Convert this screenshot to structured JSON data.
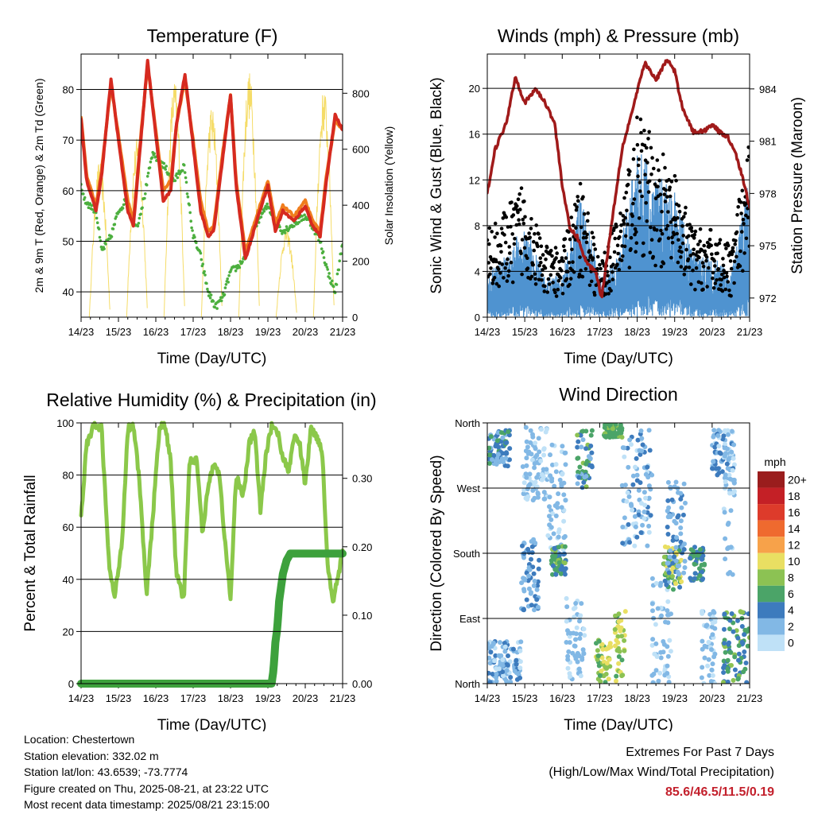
{
  "footer": {
    "location": "Location: Chestertown",
    "elevation": "Station elevation: 332.02 m",
    "latlon": "Station lat/lon: 43.6539; -73.7774",
    "created": "Figure created on Thu, 2025-08-21, at 23:22 UTC",
    "recent": "Most recent data timestamp: 2025/08/21 23:15:00",
    "extremes_title": "Extremes For Past 7 Days",
    "extremes_sub": "(High/Low/Max Wind/Total Precipitation)",
    "extremes_values": "85.6/46.5/11.5/0.19"
  },
  "chart_data": [
    {
      "type": "line",
      "title": "Temperature (F)",
      "xlabel": "Time (Day/UTC)",
      "ylabel": "2m & 9m T (Red, Orange) & 2m Td (Green)",
      "y2label": "Solar Insolation (Yellow)",
      "xticks": [
        "14/23",
        "15/23",
        "16/23",
        "17/23",
        "18/23",
        "19/23",
        "20/23",
        "21/23"
      ],
      "xlim": [
        0,
        7
      ],
      "ylim": [
        35,
        87
      ],
      "yticks": [
        40,
        50,
        60,
        70,
        80
      ],
      "y2lim": [
        0,
        940
      ],
      "y2ticks": [
        0,
        200,
        400,
        600,
        800
      ],
      "grid": true,
      "colors": {
        "t2m": "#d62a20",
        "t9m": "#f07d1e",
        "td": "#4caf3e",
        "solar": "#f5dc68"
      },
      "series": [
        {
          "key": "t9m",
          "axis": "left",
          "x": [
            0,
            0.15,
            0.4,
            0.55,
            0.8,
            1.0,
            1.25,
            1.4,
            1.6,
            1.78,
            2.0,
            2.2,
            2.4,
            2.55,
            2.78,
            3.0,
            3.2,
            3.4,
            3.55,
            3.8,
            4.0,
            4.15,
            4.4,
            4.7,
            5.0,
            5.2,
            5.4,
            5.7,
            6.0,
            6.2,
            6.4,
            6.55,
            6.8,
            7.0
          ],
          "y": [
            74.5,
            63,
            57,
            64,
            81,
            71,
            58,
            54,
            71,
            85,
            72,
            60,
            62,
            73,
            82,
            70,
            58,
            52,
            53,
            68,
            79,
            62,
            48,
            55,
            62,
            53.5,
            57,
            55,
            58,
            54,
            52,
            62,
            74,
            72
          ]
        },
        {
          "key": "t2m",
          "axis": "left",
          "x": [
            0,
            0.15,
            0.4,
            0.55,
            0.8,
            1.0,
            1.25,
            1.4,
            1.6,
            1.78,
            2.0,
            2.2,
            2.4,
            2.55,
            2.78,
            3.0,
            3.2,
            3.4,
            3.55,
            3.8,
            4.0,
            4.15,
            4.4,
            4.7,
            5.0,
            5.2,
            5.4,
            5.7,
            6.0,
            6.2,
            6.4,
            6.55,
            6.8,
            7.0
          ],
          "y": [
            74,
            62,
            56,
            63,
            82,
            70,
            56,
            53,
            70,
            85.6,
            71,
            58,
            60,
            73,
            83,
            69,
            56,
            51,
            52,
            67,
            79,
            61,
            46.5,
            54,
            61,
            52,
            56,
            54,
            57,
            53,
            51,
            61,
            75,
            72
          ]
        },
        {
          "key": "td",
          "axis": "left",
          "x": [
            0,
            0.1,
            0.4,
            0.55,
            0.8,
            1.0,
            1.2,
            1.5,
            1.7,
            1.9,
            2.1,
            2.3,
            2.5,
            2.75,
            3.0,
            3.2,
            3.4,
            3.6,
            3.8,
            4.0,
            4.2,
            4.4,
            4.6,
            4.8,
            5.0,
            5.2,
            5.4,
            5.6,
            5.8,
            6.0,
            6.2,
            6.4,
            6.6,
            6.8,
            7.0
          ],
          "y": [
            61,
            58,
            56,
            48,
            51,
            56,
            58,
            53,
            59,
            67,
            66,
            64,
            62,
            65,
            51,
            47,
            40,
            37,
            39,
            44,
            45,
            47,
            52,
            55,
            57,
            54,
            52,
            53,
            54,
            55,
            53,
            50,
            44,
            40,
            50
          ]
        },
        {
          "key": "solar",
          "axis": "right",
          "bell_centers": [
            0.5,
            1.5,
            2.5,
            3.5,
            4.5,
            5.5,
            6.5
          ],
          "peaks": [
            560,
            640,
            850,
            760,
            880,
            320,
            820
          ]
        }
      ]
    },
    {
      "type": "line",
      "title": "Winds (mph) & Pressure (mb)",
      "xlabel": "Time (Day/UTC)",
      "ylabel": "Sonic Wind & Gust (Blue, Black)",
      "y2label": "Station Pressure (Maroon)",
      "xticks": [
        "14/23",
        "15/23",
        "16/23",
        "17/23",
        "18/23",
        "19/23",
        "20/23",
        "21/23"
      ],
      "xlim": [
        0,
        7
      ],
      "ylim": [
        0,
        23
      ],
      "yticks": [
        0,
        4,
        8,
        12,
        16,
        20
      ],
      "y2lim": [
        970.9,
        986
      ],
      "y2ticks": [
        972,
        975,
        978,
        981,
        984
      ],
      "grid": true,
      "colors": {
        "wind": "#4f93d0",
        "gust": "#000000",
        "pressure": "#a01a1a"
      },
      "series": [
        {
          "key": "wind",
          "axis": "left",
          "x": [
            0,
            0.5,
            1.0,
            1.5,
            2.0,
            2.5,
            3.0,
            3.5,
            4.0,
            4.5,
            5.0,
            5.5,
            6.0,
            6.5,
            7.0
          ],
          "y": [
            2,
            3,
            4.5,
            2,
            2,
            6,
            2,
            3,
            8,
            7,
            6,
            3,
            3,
            2,
            7
          ]
        },
        {
          "key": "gust",
          "axis": "left",
          "x": [
            0,
            0.5,
            1.0,
            1.5,
            2.0,
            2.5,
            3.0,
            3.5,
            4.0,
            4.5,
            5.0,
            5.5,
            6.0,
            6.5,
            7.0
          ],
          "y": [
            5,
            6,
            8,
            4,
            4,
            8,
            3,
            6,
            11.5,
            10,
            8,
            5,
            5,
            4,
            10
          ]
        },
        {
          "key": "pressure",
          "axis": "right",
          "x": [
            0,
            0.2,
            0.5,
            0.75,
            1.0,
            1.3,
            1.6,
            1.8,
            2.0,
            2.2,
            2.4,
            2.65,
            2.9,
            3.05,
            3.3,
            3.6,
            3.9,
            4.2,
            4.5,
            4.8,
            5.0,
            5.2,
            5.5,
            5.8,
            6.0,
            6.2,
            6.4,
            6.6,
            6.8,
            7.0
          ],
          "y": [
            978,
            980.5,
            982,
            984.7,
            983.2,
            984.0,
            983,
            982,
            978.5,
            976,
            975.5,
            974,
            973.5,
            972,
            976,
            980.6,
            983.0,
            985.5,
            984.5,
            985.7,
            985.0,
            983,
            981.5,
            981.6,
            982.0,
            981.5,
            981.3,
            980.5,
            979,
            977.2
          ]
        }
      ]
    },
    {
      "type": "line",
      "title": "Relative Humidity (%) & Precipitation (in)",
      "xlabel": "Time (Day/UTC)",
      "ylabel": "Percent & Total Rainfall",
      "xticks": [
        "14/23",
        "15/23",
        "16/23",
        "17/23",
        "18/23",
        "19/23",
        "20/23",
        "21/23"
      ],
      "xlim": [
        0,
        7
      ],
      "ylim": [
        0,
        100
      ],
      "yticks": [
        0,
        20,
        40,
        60,
        80,
        100
      ],
      "y2lim": [
        0,
        0.381
      ],
      "y2ticks": [
        "0.00",
        "0.10",
        "0.20",
        "0.30"
      ],
      "y2tick_values": [
        0,
        0.1,
        0.2,
        0.3
      ],
      "grid": true,
      "colors": {
        "rh": "#8bc84a",
        "precip": "#3da13c"
      },
      "series": [
        {
          "key": "rh",
          "axis": "left",
          "x": [
            0,
            0.15,
            0.35,
            0.55,
            0.75,
            0.9,
            1.1,
            1.25,
            1.4,
            1.55,
            1.75,
            1.9,
            2.1,
            2.25,
            2.4,
            2.55,
            2.75,
            2.9,
            3.1,
            3.25,
            3.4,
            3.55,
            3.7,
            3.85,
            4.0,
            4.15,
            4.35,
            4.5,
            4.65,
            4.8,
            4.95,
            5.1,
            5.25,
            5.4,
            5.55,
            5.7,
            5.85,
            6.0,
            6.15,
            6.3,
            6.45,
            6.6,
            6.75,
            7.0
          ],
          "y": [
            64,
            92,
            99,
            98,
            45,
            33,
            55,
            98,
            99,
            80,
            34,
            60,
            99,
            99,
            85,
            42,
            32,
            85,
            86,
            58,
            75,
            85,
            80,
            55,
            32,
            80,
            72,
            92,
            97,
            66,
            88,
            99,
            97,
            87,
            81,
            95,
            92,
            76,
            98,
            95,
            90,
            45,
            32,
            50
          ]
        },
        {
          "key": "precip",
          "axis": "right",
          "x": [
            0,
            5.1,
            5.15,
            5.2,
            5.25,
            5.3,
            5.4,
            5.5,
            5.6,
            7.0
          ],
          "y": [
            0,
            0,
            0.02,
            0.06,
            0.08,
            0.12,
            0.16,
            0.18,
            0.19,
            0.19
          ]
        }
      ]
    },
    {
      "type": "scatter",
      "title": "Wind Direction",
      "xlabel": "Time (Day/UTC)",
      "ylabel": "Direction (Colored By Speed)",
      "xticks": [
        "14/23",
        "15/23",
        "16/23",
        "17/23",
        "18/23",
        "19/23",
        "20/23",
        "21/23"
      ],
      "xlim": [
        0,
        7
      ],
      "ylim": [
        0,
        360
      ],
      "yticks": [
        "North",
        "East",
        "South",
        "West",
        "North"
      ],
      "ytick_values": [
        0,
        90,
        180,
        270,
        360
      ],
      "grid": true,
      "colorbar": {
        "unit": "mph",
        "labels": [
          "20+",
          "18",
          "16",
          "14",
          "12",
          "10",
          "8",
          "6",
          "4",
          "2",
          "0"
        ],
        "colors": [
          "#9a1d1d",
          "#c42026",
          "#dd3b2b",
          "#ef6a2f",
          "#f7a24a",
          "#e9df62",
          "#8cc253",
          "#4ba468",
          "#3d7bbd",
          "#82b8e5",
          "#bfe1f7"
        ]
      },
      "clusters": [
        {
          "x": [
            0.0,
            0.6
          ],
          "dir": [
            300,
            350
          ],
          "speed": [
            2,
            6
          ]
        },
        {
          "x": [
            0.0,
            0.9
          ],
          "dir": [
            0,
            60
          ],
          "speed": [
            0,
            4
          ]
        },
        {
          "x": [
            0.9,
            1.4
          ],
          "dir": [
            100,
            200
          ],
          "speed": [
            1,
            5
          ]
        },
        {
          "x": [
            0.9,
            1.6
          ],
          "dir": [
            250,
            355
          ],
          "speed": [
            0,
            3
          ]
        },
        {
          "x": [
            1.6,
            2.1
          ],
          "dir": [
            180,
            330
          ],
          "speed": [
            0,
            3
          ]
        },
        {
          "x": [
            1.7,
            2.1
          ],
          "dir": [
            150,
            190
          ],
          "speed": [
            3,
            8
          ]
        },
        {
          "x": [
            2.1,
            2.6
          ],
          "dir": [
            0,
            120
          ],
          "speed": [
            0,
            3
          ]
        },
        {
          "x": [
            2.4,
            2.8
          ],
          "dir": [
            270,
            350
          ],
          "speed": [
            2,
            8
          ]
        },
        {
          "x": [
            2.9,
            3.3
          ],
          "dir": [
            0,
            60
          ],
          "speed": [
            6,
            11
          ]
        },
        {
          "x": [
            3.1,
            3.6
          ],
          "dir": [
            340,
            360
          ],
          "speed": [
            5,
            8
          ]
        },
        {
          "x": [
            3.4,
            3.7
          ],
          "dir": [
            0,
            100
          ],
          "speed": [
            6,
            11
          ]
        },
        {
          "x": [
            3.6,
            4.4
          ],
          "dir": [
            190,
            350
          ],
          "speed": [
            0,
            4
          ]
        },
        {
          "x": [
            4.4,
            4.9
          ],
          "dir": [
            0,
            150
          ],
          "speed": [
            0,
            3
          ]
        },
        {
          "x": [
            4.7,
            5.2
          ],
          "dir": [
            130,
            190
          ],
          "speed": [
            4,
            11
          ]
        },
        {
          "x": [
            4.8,
            5.3
          ],
          "dir": [
            150,
            280
          ],
          "speed": [
            1,
            4
          ]
        },
        {
          "x": [
            5.4,
            5.8
          ],
          "dir": [
            140,
            190
          ],
          "speed": [
            3,
            7
          ]
        },
        {
          "x": [
            5.7,
            6.1
          ],
          "dir": [
            0,
            100
          ],
          "speed": [
            0,
            3
          ]
        },
        {
          "x": [
            6.0,
            6.6
          ],
          "dir": [
            280,
            350
          ],
          "speed": [
            0,
            4
          ]
        },
        {
          "x": [
            6.3,
            6.6
          ],
          "dir": [
            150,
            330
          ],
          "speed": [
            0,
            3
          ]
        },
        {
          "x": [
            6.3,
            7.0
          ],
          "dir": [
            0,
            100
          ],
          "speed": [
            3,
            8
          ]
        }
      ]
    }
  ]
}
